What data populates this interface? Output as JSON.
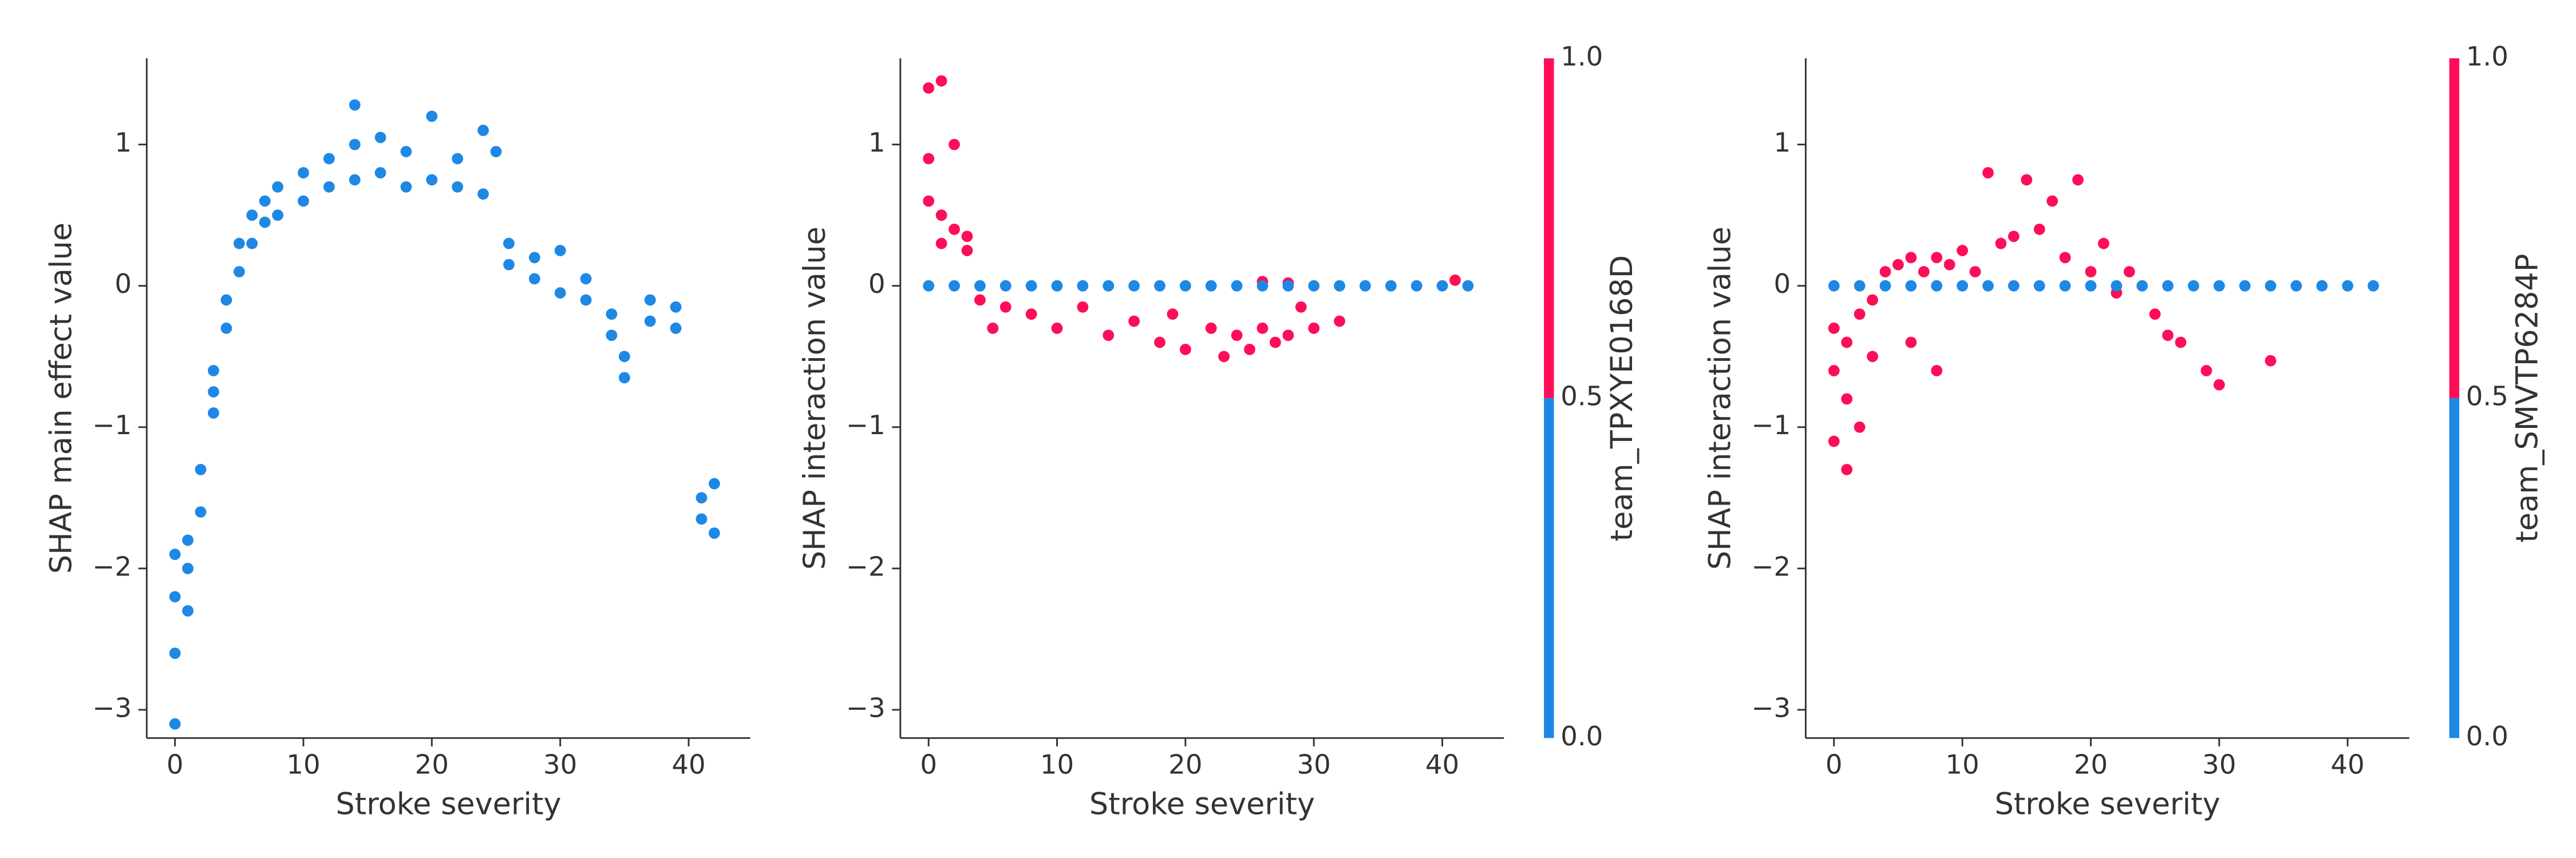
{
  "chart_data": [
    {
      "type": "scatter",
      "xlabel": "Stroke severity",
      "ylabel": "SHAP main effect value",
      "color": "#1e88e5",
      "xlim": [
        -2.2,
        44.8
      ],
      "ylim": [
        -3.2,
        1.61
      ],
      "xticks": [
        0,
        10,
        20,
        30,
        40
      ],
      "yticks": [
        {
          "value": -3,
          "label": "−3"
        },
        {
          "value": -2,
          "label": "−2"
        },
        {
          "value": -1,
          "label": "−1"
        },
        0,
        1
      ],
      "x": [
        0,
        0,
        0,
        0,
        1,
        1,
        1,
        2,
        2,
        3,
        3,
        3,
        4,
        4,
        5,
        5,
        6,
        6,
        7,
        7,
        8,
        8,
        10,
        10,
        12,
        12,
        14,
        14,
        14,
        16,
        16,
        18,
        18,
        20,
        20,
        22,
        22,
        24,
        24,
        25,
        26,
        26,
        28,
        28,
        30,
        30,
        32,
        32,
        34,
        34,
        35,
        35,
        37,
        37,
        39,
        39,
        41,
        41,
        42,
        42
      ],
      "values": [
        -3.1,
        -2.6,
        -2.2,
        -1.9,
        -2.3,
        -2.0,
        -1.8,
        -1.6,
        -1.3,
        -0.9,
        -0.6,
        -0.75,
        -0.3,
        -0.1,
        0.1,
        0.3,
        0.3,
        0.5,
        0.45,
        0.6,
        0.5,
        0.7,
        0.6,
        0.8,
        0.7,
        0.9,
        0.75,
        1.0,
        1.28,
        0.8,
        1.05,
        0.7,
        0.95,
        0.75,
        1.2,
        0.7,
        0.9,
        0.65,
        1.1,
        0.95,
        0.3,
        0.15,
        0.2,
        0.05,
        0.25,
        -0.05,
        -0.1,
        0.05,
        -0.35,
        -0.2,
        -0.5,
        -0.65,
        -0.25,
        -0.1,
        -0.3,
        -0.15,
        -1.5,
        -1.65,
        -1.75,
        -1.4
      ]
    },
    {
      "type": "scatter",
      "xlabel": "Stroke severity",
      "ylabel": "SHAP interaction value",
      "xlim": [
        -2.2,
        44.8
      ],
      "ylim": [
        -3.2,
        1.61
      ],
      "xticks": [
        0,
        10,
        20,
        30,
        40
      ],
      "yticks": [
        {
          "value": -3,
          "label": "−3"
        },
        {
          "value": -2,
          "label": "−2"
        },
        {
          "value": -1,
          "label": "−1"
        },
        0,
        1
      ],
      "colorbar": {
        "label": "team_TPXYE0168D",
        "lim": [
          0,
          1
        ],
        "colors": [
          "#1e88e5",
          "#ff0d57"
        ],
        "ticks": [
          {
            "value": 0,
            "label": "0.0"
          },
          {
            "value": 0.5,
            "label": "0.5"
          },
          {
            "value": 1,
            "label": "1.0"
          }
        ]
      },
      "x": [
        0,
        0,
        0,
        1,
        1,
        1,
        2,
        2,
        3,
        3,
        4,
        5,
        6,
        8,
        10,
        12,
        14,
        16,
        18,
        19,
        20,
        22,
        23,
        24,
        25,
        26,
        27,
        28,
        29,
        30,
        32,
        26,
        28,
        41,
        0,
        2,
        4,
        6,
        8,
        10,
        12,
        14,
        16,
        18,
        20,
        22,
        24,
        26,
        28,
        30,
        32,
        34,
        36,
        38,
        40,
        42
      ],
      "values": [
        1.4,
        0.9,
        0.6,
        1.45,
        0.5,
        0.3,
        1.0,
        0.4,
        0.35,
        0.25,
        -0.1,
        -0.3,
        -0.15,
        -0.2,
        -0.3,
        -0.15,
        -0.35,
        -0.25,
        -0.4,
        -0.2,
        -0.45,
        -0.3,
        -0.5,
        -0.35,
        -0.45,
        -0.3,
        -0.4,
        -0.35,
        -0.15,
        -0.3,
        -0.25,
        0.03,
        0.02,
        0.04,
        0,
        0,
        0,
        0,
        0,
        0,
        0,
        0,
        0,
        0,
        0,
        0,
        0,
        0,
        0,
        0,
        0,
        0,
        0,
        0,
        0,
        0
      ],
      "color_values": [
        1,
        1,
        1,
        1,
        1,
        1,
        1,
        1,
        1,
        1,
        1,
        1,
        1,
        1,
        1,
        1,
        1,
        1,
        1,
        1,
        1,
        1,
        1,
        1,
        1,
        1,
        1,
        1,
        1,
        1,
        1,
        1,
        1,
        1,
        0,
        0,
        0,
        0,
        0,
        0,
        0,
        0,
        0,
        0,
        0,
        0,
        0,
        0,
        0,
        0,
        0,
        0,
        0,
        0,
        0,
        0
      ]
    },
    {
      "type": "scatter",
      "xlabel": "Stroke severity",
      "ylabel": "SHAP interaction value",
      "xlim": [
        -2.2,
        44.8
      ],
      "ylim": [
        -3.2,
        1.61
      ],
      "xticks": [
        0,
        10,
        20,
        30,
        40
      ],
      "yticks": [
        {
          "value": -3,
          "label": "−3"
        },
        {
          "value": -2,
          "label": "−2"
        },
        {
          "value": -1,
          "label": "−1"
        },
        0,
        1
      ],
      "colorbar": {
        "label": "team_SMVTP6284P",
        "lim": [
          0,
          1
        ],
        "colors": [
          "#1e88e5",
          "#ff0d57"
        ],
        "ticks": [
          {
            "value": 0,
            "label": "0.0"
          },
          {
            "value": 0.5,
            "label": "0.5"
          },
          {
            "value": 1,
            "label": "1.0"
          }
        ]
      },
      "x": [
        0,
        0,
        0,
        1,
        1,
        1,
        2,
        2,
        3,
        3,
        4,
        5,
        6,
        6,
        7,
        8,
        8,
        9,
        10,
        11,
        12,
        13,
        14,
        15,
        16,
        17,
        18,
        19,
        20,
        21,
        22,
        23,
        25,
        26,
        27,
        29,
        30,
        34,
        0,
        2,
        4,
        6,
        8,
        10,
        12,
        14,
        16,
        18,
        20,
        22,
        24,
        26,
        28,
        30,
        32,
        34,
        36,
        38,
        40,
        42
      ],
      "values": [
        -1.1,
        -0.6,
        -0.3,
        -1.3,
        -0.8,
        -0.4,
        -1.0,
        -0.2,
        -0.5,
        -0.1,
        0.1,
        0.15,
        -0.4,
        0.2,
        0.1,
        -0.6,
        0.2,
        0.15,
        0.25,
        0.1,
        0.8,
        0.3,
        0.35,
        0.75,
        0.4,
        0.6,
        0.2,
        0.75,
        0.1,
        0.3,
        -0.05,
        0.1,
        -0.2,
        -0.35,
        -0.4,
        -0.6,
        -0.7,
        -0.53,
        0,
        0,
        0,
        0,
        0,
        0,
        0,
        0,
        0,
        0,
        0,
        0,
        0,
        0,
        0,
        0,
        0,
        0,
        0,
        0,
        0,
        0
      ],
      "color_values": [
        1,
        1,
        1,
        1,
        1,
        1,
        1,
        1,
        1,
        1,
        1,
        1,
        1,
        1,
        1,
        1,
        1,
        1,
        1,
        1,
        1,
        1,
        1,
        1,
        1,
        1,
        1,
        1,
        1,
        1,
        1,
        1,
        1,
        1,
        1,
        1,
        1,
        1,
        0,
        0,
        0,
        0,
        0,
        0,
        0,
        0,
        0,
        0,
        0,
        0,
        0,
        0,
        0,
        0,
        0,
        0,
        0,
        0,
        0,
        0
      ]
    }
  ]
}
